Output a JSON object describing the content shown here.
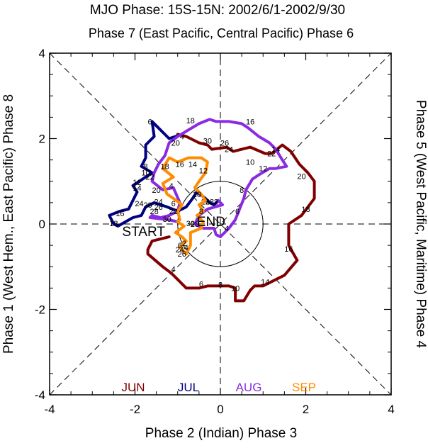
{
  "chart_data": {
    "type": "line",
    "title": "MJO Phase: 15S-15N: 2002/6/1-2002/9/30",
    "top_label": "Phase 7 (East Pacific, Central Pacific) Phase 6",
    "bottom_label": "Phase 2 (Indian) Phase 3",
    "left_label": "Phase 1 (West Hem., East Pacific) Phase 8",
    "right_label": "Phase 5 (West Pacific, Maritime) Phase 4",
    "xlim": [
      -4,
      4
    ],
    "ylim": [
      -4,
      4
    ],
    "x_ticks": [
      "-4",
      "-2",
      "0",
      "2",
      "4"
    ],
    "y_ticks": [
      "4",
      "2",
      "0",
      "-2",
      "-4"
    ],
    "start_label": "START",
    "end_label": "END",
    "legend_placement": "bottom",
    "series": [
      {
        "name": "JUN",
        "color": "#800000",
        "points": [
          [
            -1.2,
            -0.3
          ],
          [
            -1.6,
            -0.4
          ],
          [
            -1.7,
            -0.6
          ],
          [
            -1.7,
            -0.7
          ],
          [
            -1.35,
            -1.0
          ],
          [
            -1.15,
            -1.15
          ],
          [
            -1.0,
            -1.3
          ],
          [
            -0.85,
            -1.45
          ],
          [
            -0.8,
            -1.5
          ],
          [
            -0.5,
            -1.5
          ],
          [
            -0.3,
            -1.45
          ],
          [
            -0.1,
            -1.45
          ],
          [
            0.0,
            -1.45
          ],
          [
            0.2,
            -1.45
          ],
          [
            0.35,
            -1.5
          ],
          [
            0.35,
            -1.8
          ],
          [
            0.55,
            -1.8
          ],
          [
            0.7,
            -1.55
          ],
          [
            0.8,
            -1.45
          ],
          [
            1.0,
            -1.45
          ],
          [
            1.2,
            -1.35
          ],
          [
            1.5,
            -1.2
          ],
          [
            1.8,
            -0.85
          ],
          [
            1.6,
            -0.5
          ],
          [
            1.6,
            0.0
          ],
          [
            1.9,
            0.2
          ],
          [
            2.2,
            0.6
          ],
          [
            2.2,
            0.8
          ],
          [
            2.2,
            1.0
          ],
          [
            2.05,
            1.2
          ],
          [
            1.85,
            1.4
          ],
          [
            1.65,
            1.7
          ],
          [
            1.45,
            1.85
          ],
          [
            1.2,
            1.65
          ],
          [
            1.05,
            1.65
          ],
          [
            0.7,
            1.8
          ],
          [
            0.3,
            1.7
          ],
          [
            0.15,
            1.8
          ],
          [
            -0.2,
            1.75
          ],
          [
            -0.3,
            1.85
          ],
          [
            -0.5,
            1.9
          ],
          [
            -0.8,
            2.05
          ],
          [
            -1.0,
            2.1
          ]
        ],
        "labels": [
          {
            "t": "4",
            "x": -1.1,
            "y": -1.05
          },
          {
            "t": "6",
            "x": -0.45,
            "y": -1.4
          },
          {
            "t": "8",
            "x": 0.0,
            "y": -1.42
          },
          {
            "t": "10",
            "x": 0.35,
            "y": -1.5
          },
          {
            "t": "14",
            "x": 1.05,
            "y": -1.35
          },
          {
            "t": "16",
            "x": 1.6,
            "y": -0.58
          },
          {
            "t": "18",
            "x": 2.0,
            "y": 0.35
          },
          {
            "t": "20",
            "x": 1.9,
            "y": 1.12
          },
          {
            "t": "22",
            "x": 1.2,
            "y": 1.65
          },
          {
            "t": "24",
            "x": 0.2,
            "y": 1.75
          },
          {
            "t": "26",
            "x": 0.1,
            "y": 1.9
          },
          {
            "t": "30",
            "x": -0.3,
            "y": 1.95
          },
          {
            "t": "4",
            "x": -0.9,
            "y": 2.05
          }
        ]
      },
      {
        "name": "JUL",
        "color": "#000080",
        "points": [
          [
            -0.9,
            2.1
          ],
          [
            -1.2,
            2.0
          ],
          [
            -1.5,
            2.3
          ],
          [
            -1.6,
            2.4
          ],
          [
            -1.55,
            2.05
          ],
          [
            -1.75,
            1.85
          ],
          [
            -1.75,
            1.55
          ],
          [
            -1.85,
            1.35
          ],
          [
            -1.6,
            1.2
          ],
          [
            -1.9,
            1.0
          ],
          [
            -2.05,
            0.9
          ],
          [
            -1.95,
            0.75
          ],
          [
            -2.05,
            0.55
          ],
          [
            -2.15,
            0.35
          ],
          [
            -2.35,
            0.3
          ],
          [
            -2.6,
            0.2
          ],
          [
            -2.5,
            0.0
          ],
          [
            -2.4,
            -0.05
          ],
          [
            -2.05,
            0.15
          ],
          [
            -1.85,
            0.2
          ],
          [
            -1.75,
            0.4
          ],
          [
            -1.55,
            0.5
          ],
          [
            -1.25,
            0.4
          ],
          [
            -1.0,
            0.3
          ],
          [
            -0.8,
            0.4
          ],
          [
            -0.65,
            0.6
          ],
          [
            -0.55,
            0.75
          ],
          [
            -0.35,
            0.6
          ],
          [
            -0.25,
            0.5
          ],
          [
            -0.15,
            0.45
          ],
          [
            -0.05,
            0.55
          ]
        ],
        "labels": [
          {
            "t": "6",
            "x": -1.65,
            "y": 2.4
          },
          {
            "t": "8",
            "x": -1.75,
            "y": 1.35
          },
          {
            "t": "10",
            "x": -1.75,
            "y": 1.2
          },
          {
            "t": "12",
            "x": -1.95,
            "y": 0.98
          },
          {
            "t": "14",
            "x": -1.95,
            "y": 0.85
          },
          {
            "t": "16",
            "x": -2.35,
            "y": 0.25
          },
          {
            "t": "18",
            "x": -2.5,
            "y": 0.02
          },
          {
            "t": "20",
            "x": -1.7,
            "y": 0.45
          },
          {
            "t": "24",
            "x": -1.9,
            "y": 0.48
          },
          {
            "t": "26",
            "x": -0.35,
            "y": 0.52
          },
          {
            "t": "28",
            "x": -0.25,
            "y": 0.52
          }
        ]
      },
      {
        "name": "AUG",
        "color": "#8a2be2",
        "points": [
          [
            -0.05,
            0.55
          ],
          [
            0.05,
            0.45
          ],
          [
            -0.3,
            0.35
          ],
          [
            -0.5,
            0.2
          ],
          [
            -0.6,
            0.0
          ],
          [
            -0.4,
            -0.1
          ],
          [
            -0.15,
            -0.1
          ],
          [
            -0.1,
            -0.25
          ],
          [
            0.0,
            -0.3
          ],
          [
            0.2,
            -0.1
          ],
          [
            0.35,
            0.1
          ],
          [
            0.45,
            0.35
          ],
          [
            0.55,
            0.6
          ],
          [
            0.6,
            0.8
          ],
          [
            0.75,
            1.05
          ],
          [
            0.9,
            1.15
          ],
          [
            1.15,
            1.3
          ],
          [
            1.3,
            1.3
          ],
          [
            1.55,
            1.35
          ],
          [
            1.45,
            1.5
          ],
          [
            1.3,
            1.75
          ],
          [
            1.15,
            1.9
          ],
          [
            0.9,
            2.05
          ],
          [
            0.65,
            2.25
          ],
          [
            0.5,
            2.35
          ],
          [
            0.2,
            2.4
          ],
          [
            -0.1,
            2.4
          ],
          [
            -0.25,
            2.45
          ],
          [
            -0.5,
            2.35
          ],
          [
            -0.75,
            2.2
          ],
          [
            -1.0,
            2.05
          ],
          [
            -1.2,
            1.9
          ],
          [
            -1.3,
            1.6
          ],
          [
            -1.45,
            1.4
          ],
          [
            -1.55,
            1.2
          ],
          [
            -1.6,
            1.0
          ],
          [
            -1.35,
            0.8
          ],
          [
            -1.1,
            0.85
          ],
          [
            -0.95,
            0.5
          ],
          [
            -1.0,
            0.3
          ],
          [
            -1.2,
            0.2
          ],
          [
            -1.4,
            0.15
          ],
          [
            -1.6,
            0.2
          ],
          [
            -1.65,
            0.15
          ],
          [
            -1.2,
            0.1
          ],
          [
            -1.0,
            0.05
          ]
        ],
        "labels": [
          {
            "t": "2",
            "x": -0.1,
            "y": 0.52
          },
          {
            "t": "4",
            "x": 0.15,
            "y": -0.1
          },
          {
            "t": "6",
            "x": 0.4,
            "y": 0.3
          },
          {
            "t": "8",
            "x": 0.5,
            "y": 0.8
          },
          {
            "t": "10",
            "x": 0.7,
            "y": 1.45
          },
          {
            "t": "12",
            "x": 1.0,
            "y": 1.3
          },
          {
            "t": "14",
            "x": 1.3,
            "y": 1.75
          },
          {
            "t": "16",
            "x": 0.7,
            "y": 2.4
          },
          {
            "t": "18",
            "x": -0.7,
            "y": 2.42
          },
          {
            "t": "20",
            "x": -1.05,
            "y": 1.9
          },
          {
            "t": "22",
            "x": -1.65,
            "y": 1.1
          },
          {
            "t": "24",
            "x": -1.45,
            "y": 0.52
          },
          {
            "t": "26",
            "x": -1.45,
            "y": 0.4
          },
          {
            "t": "28",
            "x": -1.55,
            "y": 0.3
          },
          {
            "t": "30",
            "x": -1.25,
            "y": 0.12
          }
        ]
      },
      {
        "name": "SEP",
        "color": "#ff8c00",
        "points": [
          [
            -1.0,
            0.05
          ],
          [
            -0.85,
            -0.05
          ],
          [
            -1.05,
            -0.2
          ],
          [
            -0.9,
            -0.3
          ],
          [
            -0.8,
            -0.4
          ],
          [
            -0.95,
            -0.55
          ],
          [
            -0.8,
            -0.7
          ],
          [
            -0.7,
            -0.5
          ],
          [
            -0.7,
            -0.2
          ],
          [
            -0.45,
            -0.1
          ],
          [
            -0.4,
            0.05
          ],
          [
            -0.55,
            0.2
          ],
          [
            -0.4,
            0.3
          ],
          [
            -0.5,
            0.45
          ],
          [
            -0.35,
            0.55
          ],
          [
            -0.45,
            0.7
          ],
          [
            -0.6,
            0.85
          ],
          [
            -0.5,
            1.0
          ],
          [
            -0.35,
            1.2
          ],
          [
            -0.3,
            1.45
          ],
          [
            -0.45,
            1.55
          ],
          [
            -0.75,
            1.55
          ],
          [
            -1.0,
            1.45
          ],
          [
            -1.2,
            1.55
          ],
          [
            -1.35,
            1.3
          ],
          [
            -1.1,
            1.1
          ],
          [
            -1.35,
            0.95
          ],
          [
            -1.25,
            0.7
          ],
          [
            -1.1,
            0.6
          ],
          [
            -0.9,
            0.45
          ],
          [
            -1.0,
            0.3
          ],
          [
            -0.95,
            0.1
          ],
          [
            -1.0,
            0.05
          ]
        ],
        "labels": [
          {
            "t": "2",
            "x": -0.85,
            "y": -0.45
          },
          {
            "t": "4",
            "x": -0.8,
            "y": -0.55
          },
          {
            "t": "6",
            "x": -0.95,
            "y": -0.5
          },
          {
            "t": "8",
            "x": -0.45,
            "y": 0.3
          },
          {
            "t": "10",
            "x": -0.55,
            "y": 0.7
          },
          {
            "t": "12",
            "x": -0.4,
            "y": 1.25
          },
          {
            "t": "14",
            "x": -0.65,
            "y": 1.4
          },
          {
            "t": "16",
            "x": -0.95,
            "y": 1.4
          },
          {
            "t": "18",
            "x": -1.3,
            "y": 1.35
          },
          {
            "t": "20",
            "x": -1.5,
            "y": 0.8
          },
          {
            "t": "22",
            "x": -1.1,
            "y": 0.3
          },
          {
            "t": "24",
            "x": -0.95,
            "y": -0.6
          },
          {
            "t": "26",
            "x": -0.9,
            "y": -0.7
          },
          {
            "t": "28",
            "x": -0.6,
            "y": 0.0
          },
          {
            "t": "30",
            "x": -0.7,
            "y": 0.02
          },
          {
            "t": "4",
            "x": -1.15,
            "y": 0.9
          },
          {
            "t": "6",
            "x": -1.1,
            "y": 0.48
          }
        ]
      }
    ]
  }
}
